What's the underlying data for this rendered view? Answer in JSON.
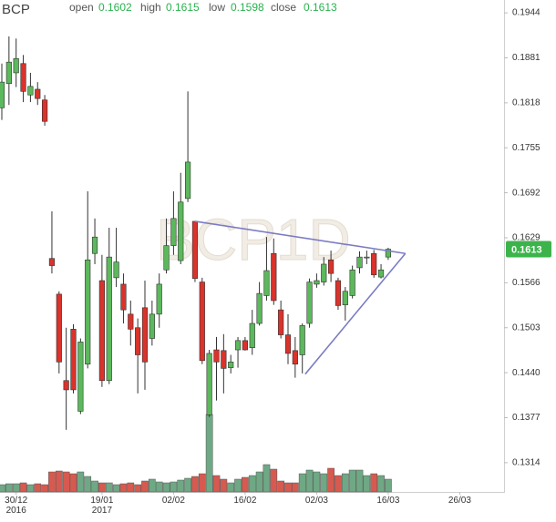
{
  "chart_data": {
    "type": "candlestick",
    "title": "BCP",
    "watermark": "BCP1D",
    "header": [
      {
        "label": "open",
        "value": 0.1602
      },
      {
        "label": "high",
        "value": 0.1615
      },
      {
        "label": "low",
        "value": 0.1598
      },
      {
        "label": "close",
        "value": 0.1613
      }
    ],
    "last_price": 0.1613,
    "up_color": "#5cb85c",
    "down_color": "#d9332b",
    "volume_up_color": "#6fa884",
    "volume_down_color": "#d65a4f",
    "trendline_color": "#7c7cc4",
    "ylim": [
      0.1273,
      0.1962
    ],
    "yticks": [
      0.1944,
      0.1881,
      0.1818,
      0.1755,
      0.1692,
      0.1629,
      0.1566,
      0.1503,
      {
        "value": 0.144,
        "label": "0.1440"
      },
      0.1377,
      0.1314
    ],
    "volume_lim": [
      0,
      100
    ],
    "categories": [
      null,
      null,
      "30/12\n2016",
      null,
      null,
      null,
      null,
      null,
      null,
      null,
      null,
      null,
      null,
      null,
      "19/01\n2017",
      null,
      null,
      null,
      null,
      null,
      null,
      null,
      null,
      null,
      "02/02",
      null,
      null,
      null,
      null,
      null,
      null,
      null,
      null,
      null,
      "16/02",
      null,
      null,
      null,
      null,
      null,
      null,
      null,
      null,
      null,
      "02/03",
      null,
      null,
      null,
      null,
      null,
      null,
      null,
      null,
      null,
      "16/03",
      null,
      null,
      null,
      null,
      null,
      null,
      null,
      null,
      null,
      "26/03",
      null,
      null,
      null,
      null,
      null
    ],
    "open": [
      0.1811,
      0.1845,
      0.186,
      0.1873,
      0.1829,
      0.1837,
      0.1822,
      0.16,
      0.155,
      0.1429,
      0.1501,
      0.1386,
      0.1452,
      0.1607,
      0.1569,
      0.1429,
      0.1573,
      0.1564,
      0.1522,
      0.1503,
      0.1531,
      0.1488,
      0.1522,
      0.1584,
      0.1618,
      0.1597,
      0.1684,
      0.1652,
      0.1567,
      0.1381,
      0.1472,
      0.1471,
      0.1447,
      0.1472,
      0.1485,
      0.1475,
      0.1509,
      0.1548,
      0.1607,
      0.1528,
      0.1493,
      0.1471,
      0.1465,
      0.1509,
      0.1564,
      0.1567,
      0.1598,
      0.1569,
      0.1535,
      0.1548,
      0.1587,
      0.1601,
      0.1607,
      0.1574,
      0.1602,
      null,
      null,
      null,
      null,
      null,
      null,
      null,
      null,
      null,
      null,
      null,
      null,
      null,
      null,
      null
    ],
    "high": [
      0.1873,
      0.1911,
      0.1908,
      0.1885,
      0.186,
      0.1847,
      0.1829,
      0.1666,
      0.1554,
      0.1503,
      0.1508,
      0.1488,
      0.1694,
      0.1656,
      0.1605,
      0.1643,
      0.1643,
      0.1579,
      0.1541,
      0.1516,
      0.1569,
      0.1541,
      0.1579,
      0.1656,
      0.1694,
      0.172,
      0.1834,
      0.1652,
      0.1573,
      0.1472,
      0.149,
      0.1494,
      0.1465,
      0.149,
      0.149,
      0.1528,
      0.1567,
      0.163,
      0.1628,
      0.1541,
      0.1522,
      0.149,
      0.1509,
      0.1572,
      0.1579,
      0.1602,
      0.1611,
      0.1573,
      0.156,
      0.159,
      0.161,
      0.1611,
      0.1612,
      0.1592,
      0.1615,
      null,
      null,
      null,
      null,
      null,
      null,
      null,
      null,
      null,
      null,
      null,
      null,
      null,
      null,
      null
    ],
    "low": [
      0.1794,
      0.1815,
      0.184,
      0.1819,
      0.1819,
      0.1815,
      0.1786,
      0.1579,
      0.1439,
      0.136,
      0.1411,
      0.1382,
      0.1446,
      0.1592,
      0.142,
      0.1424,
      0.156,
      0.1509,
      0.1478,
      0.1411,
      0.1416,
      0.1478,
      0.1503,
      0.1579,
      0.1605,
      0.1592,
      0.1679,
      0.1567,
      0.1452,
      0.1378,
      0.1401,
      0.1411,
      0.1439,
      0.1447,
      0.1471,
      0.1465,
      0.1506,
      0.1541,
      0.1535,
      0.1488,
      0.1452,
      0.1433,
      0.1439,
      0.1503,
      0.1559,
      0.1562,
      0.1567,
      0.1528,
      0.1513,
      0.1544,
      0.1579,
      0.1592,
      0.1573,
      0.1572,
      0.1598,
      null,
      null,
      null,
      null,
      null,
      null,
      null,
      null,
      null,
      null,
      null,
      null,
      null,
      null,
      null
    ],
    "close": [
      0.1847,
      0.1875,
      0.188,
      0.1834,
      0.1841,
      0.1824,
      0.1792,
      0.159,
      0.1455,
      0.1416,
      0.1416,
      0.1483,
      0.1598,
      0.163,
      0.1429,
      0.1602,
      0.1595,
      0.1528,
      0.1501,
      0.1465,
      0.1455,
      0.1522,
      0.1564,
      0.1618,
      0.1656,
      0.1679,
      0.1735,
      0.1572,
      0.1457,
      0.1467,
      0.1455,
      0.1446,
      0.1455,
      0.1485,
      0.1472,
      0.1509,
      0.1551,
      0.1583,
      0.1541,
      0.1493,
      0.1467,
      0.1452,
      0.1506,
      0.1567,
      0.1569,
      0.1592,
      0.1579,
      0.1534,
      0.1554,
      0.1584,
      0.1602,
      0.1602,
      0.1577,
      0.1584,
      0.1613,
      null,
      null,
      null,
      null,
      null,
      null,
      null,
      null,
      null,
      null,
      null,
      null,
      null,
      null,
      null
    ],
    "volume": [
      8,
      9,
      9,
      10,
      8,
      9,
      8,
      22,
      23,
      22,
      20,
      22,
      17,
      12,
      10,
      10,
      8,
      9,
      10,
      8,
      12,
      14,
      11,
      10,
      11,
      13,
      15,
      17,
      20,
      85,
      18,
      14,
      10,
      14,
      16,
      18,
      22,
      30,
      25,
      12,
      10,
      10,
      20,
      24,
      22,
      20,
      26,
      18,
      20,
      24,
      24,
      18,
      20,
      18,
      14,
      null,
      null,
      null,
      null,
      null,
      null,
      null,
      null,
      null,
      null,
      null,
      null,
      null,
      null,
      null
    ],
    "trendlines": [
      {
        "x": [
          27,
          56.4
        ],
        "y": [
          0.1652,
          0.1607
        ]
      },
      {
        "x": [
          42.4,
          56.4
        ],
        "y": [
          0.1438,
          0.1607
        ]
      }
    ]
  }
}
